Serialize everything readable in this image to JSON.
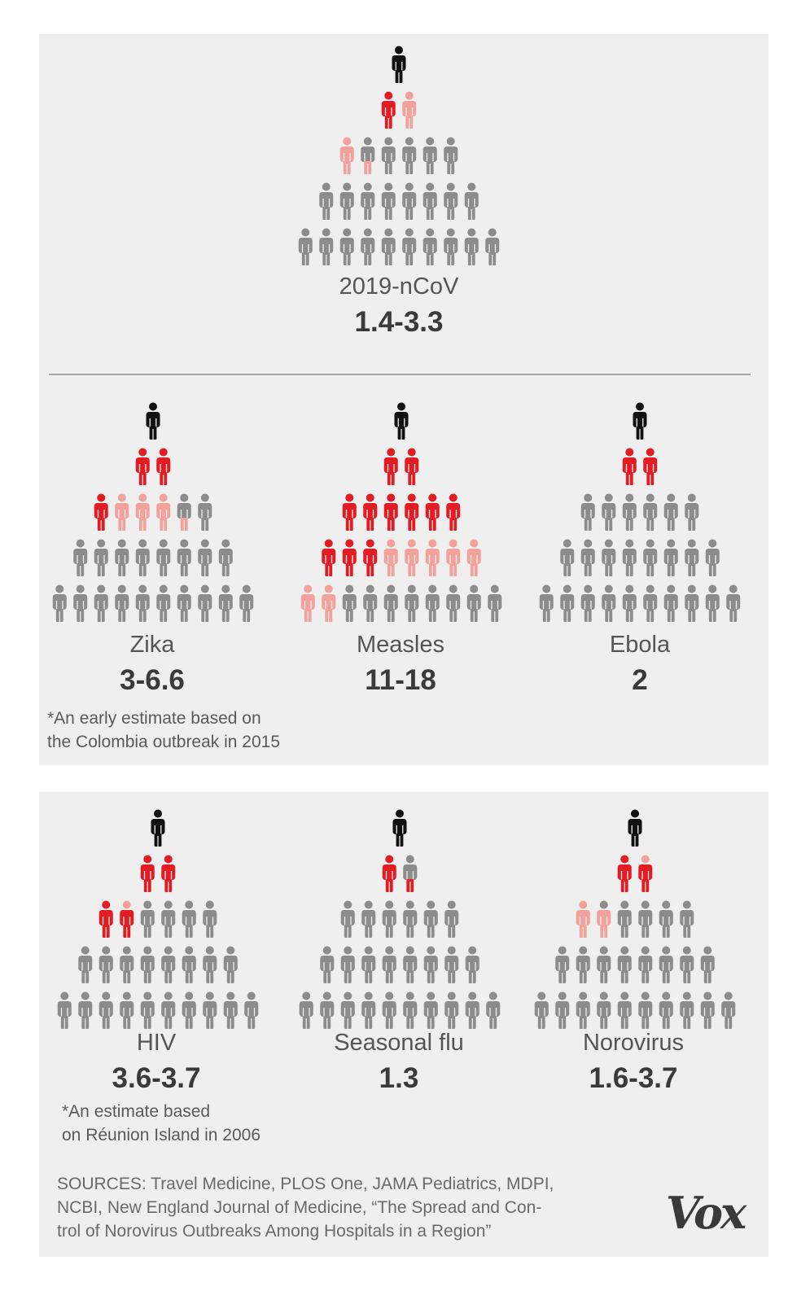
{
  "colors": {
    "source": "#111111",
    "infected": "#e31b23",
    "partial": "#f2a29b",
    "uninfected": "#8c8c8c",
    "panel": "#efefef"
  },
  "icons": [
    "person-icon"
  ],
  "chart_data": [
    {
      "type": "pictogram-pyramid",
      "name": "2019-nCoV",
      "value_label": "1.4-3.3",
      "range": [
        1.4,
        3.3
      ],
      "rows": [
        [
          "source"
        ],
        [
          "infected",
          "partial"
        ],
        [
          "partial",
          "half",
          "gray",
          "gray",
          "gray",
          "gray"
        ],
        [
          "gray",
          "gray",
          "gray",
          "gray",
          "gray",
          "gray",
          "gray",
          "gray"
        ],
        [
          "gray",
          "gray",
          "gray",
          "gray",
          "gray",
          "gray",
          "gray",
          "gray",
          "gray",
          "gray"
        ]
      ]
    },
    {
      "type": "pictogram-pyramid",
      "name": "Zika",
      "value_label": "3-6.6",
      "range": [
        3,
        6.6
      ],
      "note": "*An early estimate based on the Colombia outbreak in 2015",
      "note_lines": [
        "*An early estimate based on",
        "the Colombia outbreak in 2015"
      ],
      "rows": [
        [
          "source"
        ],
        [
          "infected",
          "infected"
        ],
        [
          "infected",
          "partial",
          "partial",
          "partial",
          "half",
          "gray"
        ],
        [
          "gray",
          "gray",
          "gray",
          "gray",
          "gray",
          "gray",
          "gray",
          "gray"
        ],
        [
          "gray",
          "gray",
          "gray",
          "gray",
          "gray",
          "gray",
          "gray",
          "gray",
          "gray",
          "gray"
        ]
      ]
    },
    {
      "type": "pictogram-pyramid",
      "name": "Measles",
      "value_label": "11-18",
      "range": [
        11,
        18
      ],
      "rows": [
        [
          "source"
        ],
        [
          "infected",
          "infected"
        ],
        [
          "infected",
          "infected",
          "infected",
          "infected",
          "infected",
          "infected"
        ],
        [
          "infected",
          "infected",
          "infected",
          "partial",
          "partial",
          "partial",
          "partial",
          "partial"
        ],
        [
          "partial",
          "partial",
          "gray",
          "gray",
          "gray",
          "gray",
          "gray",
          "gray",
          "gray",
          "gray"
        ]
      ]
    },
    {
      "type": "pictogram-pyramid",
      "name": "Ebola",
      "value_label": "2",
      "range": [
        2,
        2
      ],
      "rows": [
        [
          "source"
        ],
        [
          "infected",
          "infected"
        ],
        [
          "gray",
          "gray",
          "gray",
          "gray",
          "gray",
          "gray"
        ],
        [
          "gray",
          "gray",
          "gray",
          "gray",
          "gray",
          "gray",
          "gray",
          "gray"
        ],
        [
          "gray",
          "gray",
          "gray",
          "gray",
          "gray",
          "gray",
          "gray",
          "gray",
          "gray",
          "gray"
        ]
      ]
    },
    {
      "type": "pictogram-pyramid",
      "name": "HIV",
      "value_label": "3.6-3.7",
      "range": [
        3.6,
        3.7
      ],
      "note": "*An estimate based on Réunion Island in 2006",
      "note_lines": [
        "*An estimate based",
        "on Réunion Island in 2006"
      ],
      "rows": [
        [
          "source"
        ],
        [
          "infected",
          "infected"
        ],
        [
          "infected",
          "half-red",
          "gray",
          "gray",
          "gray",
          "gray"
        ],
        [
          "gray",
          "gray",
          "gray",
          "gray",
          "gray",
          "gray",
          "gray",
          "gray"
        ],
        [
          "gray",
          "gray",
          "gray",
          "gray",
          "gray",
          "gray",
          "gray",
          "gray",
          "gray",
          "gray"
        ]
      ]
    },
    {
      "type": "pictogram-pyramid",
      "name": "Seasonal flu",
      "value_label": "1.3",
      "range": [
        1.3,
        1.3
      ],
      "rows": [
        [
          "source"
        ],
        [
          "infected",
          "half-red-low"
        ],
        [
          "gray",
          "gray",
          "gray",
          "gray",
          "gray",
          "gray"
        ],
        [
          "gray",
          "gray",
          "gray",
          "gray",
          "gray",
          "gray",
          "gray",
          "gray"
        ],
        [
          "gray",
          "gray",
          "gray",
          "gray",
          "gray",
          "gray",
          "gray",
          "gray",
          "gray",
          "gray"
        ]
      ]
    },
    {
      "type": "pictogram-pyramid",
      "name": "Norovirus",
      "value_label": "1.6-3.7",
      "range": [
        1.6,
        3.7
      ],
      "rows": [
        [
          "source"
        ],
        [
          "infected",
          "half-red"
        ],
        [
          "partial",
          "half-pink",
          "gray",
          "gray",
          "gray",
          "gray"
        ],
        [
          "gray",
          "gray",
          "gray",
          "gray",
          "gray",
          "gray",
          "gray",
          "gray"
        ],
        [
          "gray",
          "gray",
          "gray",
          "gray",
          "gray",
          "gray",
          "gray",
          "gray",
          "gray",
          "gray"
        ]
      ]
    }
  ],
  "sources_lines": [
    "SOURCES: Travel Medicine, PLOS One, JAMA Pediatrics, MDPI,",
    "NCBI, New England Journal of Medicine, “The Spread and Con-",
    "trol of Norovirus Outbreaks Among Hospitals in a Region”"
  ],
  "logo": "Vox"
}
